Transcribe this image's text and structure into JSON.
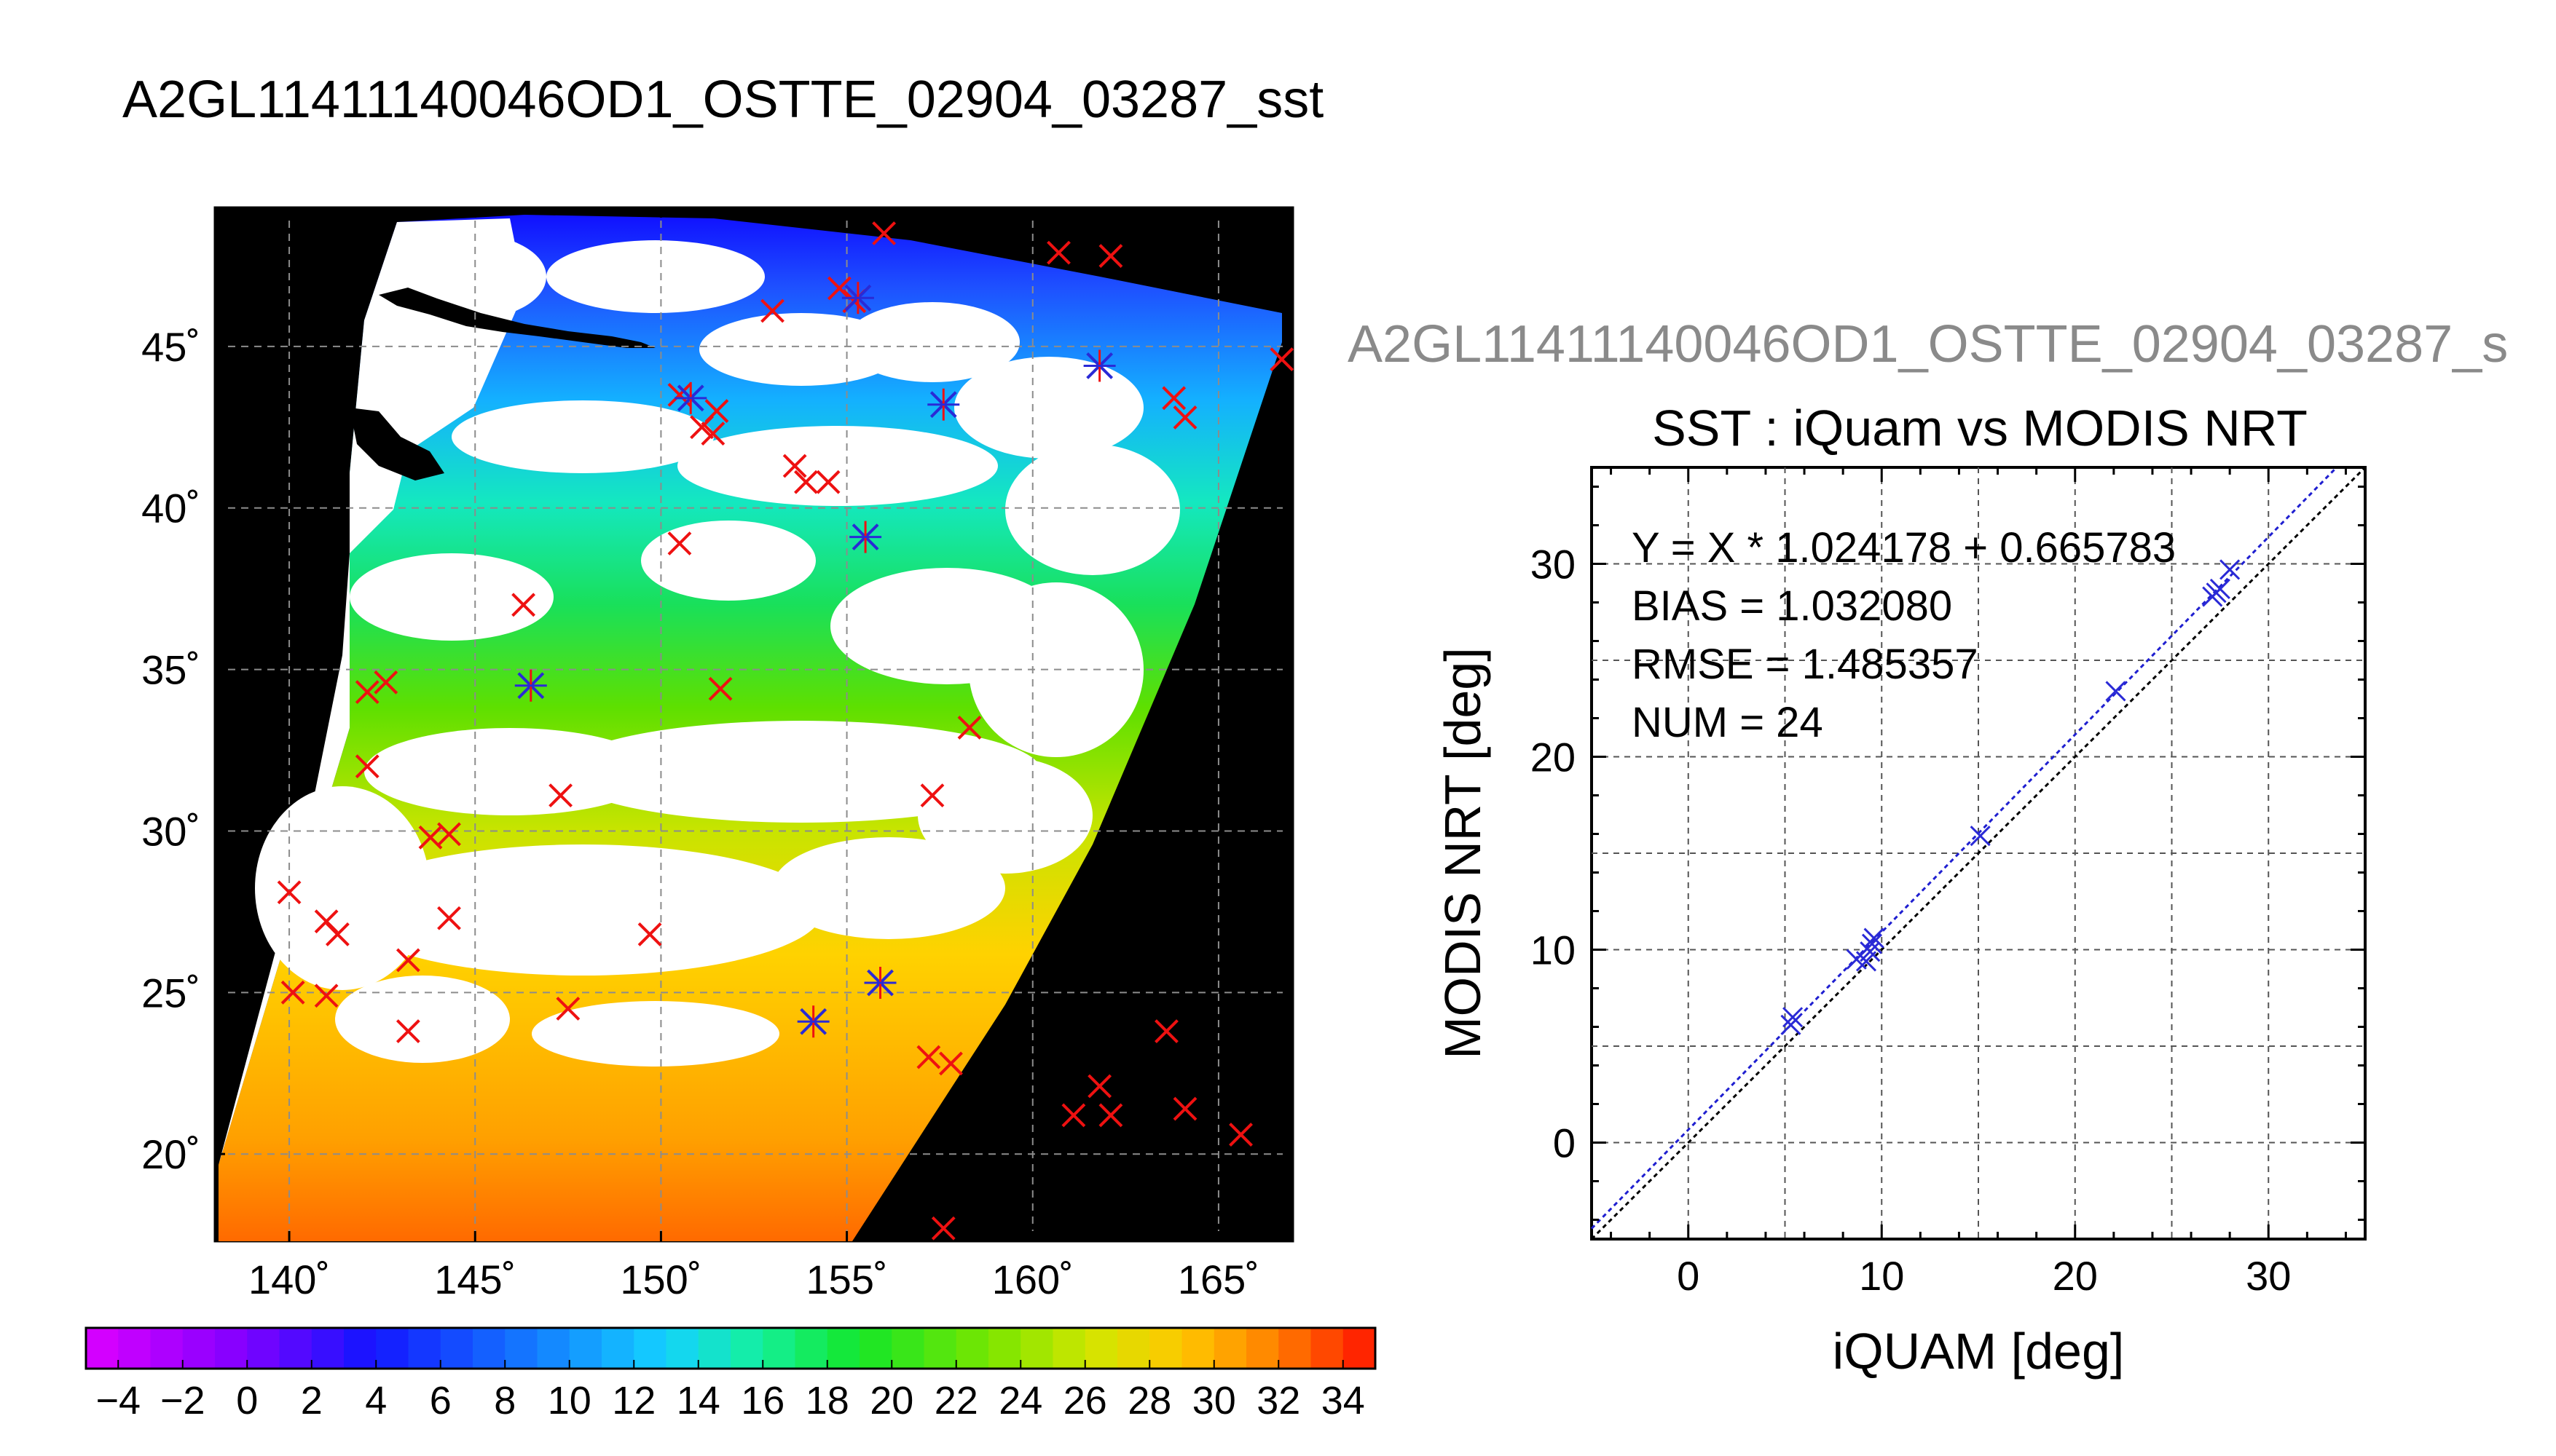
{
  "title": "A2GL11411140046OD1_OSTTE_02904_03287_sst",
  "title_overflow": "A2GL11411140046OD1_OSTTE_02904_03287_s",
  "chart_data": [
    {
      "type": "map",
      "x_ticks": [
        "140˚",
        "145˚",
        "150˚",
        "155˚",
        "160˚",
        "165˚"
      ],
      "x_tick_values": [
        140,
        145,
        150,
        155,
        160,
        165
      ],
      "y_ticks": [
        "20˚",
        "25˚",
        "30˚",
        "35˚",
        "40˚",
        "45˚"
      ],
      "y_tick_values": [
        20,
        25,
        30,
        35,
        40,
        45
      ],
      "xlim": [
        138,
        167
      ],
      "ylim": [
        17.3,
        49.3
      ],
      "grid": true,
      "points": {
        "red": [
          [
            140,
            28.1
          ],
          [
            140.1,
            25
          ],
          [
            141,
            27.2
          ],
          [
            141,
            24.9
          ],
          [
            141.3,
            26.8
          ],
          [
            142.1,
            34.3
          ],
          [
            142.6,
            34.6
          ],
          [
            142.1,
            32
          ],
          [
            143.2,
            26
          ],
          [
            143.2,
            23.8
          ],
          [
            143.8,
            29.8
          ],
          [
            144.3,
            29.9
          ],
          [
            144.3,
            27.3
          ],
          [
            146.3,
            37
          ],
          [
            147.3,
            31.1
          ],
          [
            147.5,
            24.5
          ],
          [
            149.7,
            26.8
          ],
          [
            150.5,
            43.5
          ],
          [
            150.5,
            38.9
          ],
          [
            151.1,
            42.5
          ],
          [
            151.5,
            43
          ],
          [
            151.4,
            42.3
          ],
          [
            151.6,
            34.4
          ],
          [
            153.0,
            46.1
          ],
          [
            153.6,
            41.3
          ],
          [
            153.9,
            40.8
          ],
          [
            154.5,
            40.8
          ],
          [
            154.8,
            46.8
          ],
          [
            155.2,
            46.4
          ],
          [
            156,
            48.5
          ],
          [
            157.2,
            23
          ],
          [
            157.3,
            31.1
          ],
          [
            157.8,
            22.8
          ],
          [
            158.3,
            33.2
          ],
          [
            160.7,
            47.9
          ],
          [
            161.1,
            21.2
          ],
          [
            161.8,
            22.1
          ],
          [
            162.1,
            47.8
          ],
          [
            162.1,
            21.2
          ],
          [
            163.6,
            23.8
          ],
          [
            163.8,
            43.4
          ],
          [
            164.1,
            42.8
          ],
          [
            164.1,
            21.4
          ],
          [
            165.6,
            20.6
          ],
          [
            166.7,
            44.6
          ],
          [
            157.6,
            17.7
          ]
        ],
        "blue": [
          [
            146.5,
            34.5
          ],
          [
            150.8,
            43.4
          ],
          [
            155.3,
            46.5
          ],
          [
            155.5,
            39.1
          ],
          [
            157.6,
            43.2
          ],
          [
            161.8,
            44.4
          ],
          [
            154.1,
            24.1
          ],
          [
            155.9,
            25.3
          ]
        ]
      }
    },
    {
      "type": "colorbar",
      "min": -5,
      "max": 35,
      "tick_labels": [
        "−4",
        "−2",
        "0",
        "2",
        "4",
        "6",
        "8",
        "10",
        "12",
        "14",
        "16",
        "18",
        "20",
        "22",
        "24",
        "26",
        "28",
        "30",
        "32",
        "34"
      ],
      "tick_values": [
        -4,
        -2,
        0,
        2,
        4,
        6,
        8,
        10,
        12,
        14,
        16,
        18,
        20,
        22,
        24,
        26,
        28,
        30,
        32,
        34
      ]
    },
    {
      "type": "scatter",
      "title": "SST : iQuam vs MODIS NRT",
      "xlabel": "iQUAM [deg]",
      "ylabel": "MODIS NRT [deg]",
      "xlim": [
        -5,
        35
      ],
      "ylim": [
        -5,
        35
      ],
      "x_ticks": [
        0,
        10,
        20,
        30
      ],
      "y_ticks": [
        0,
        10,
        20,
        30
      ],
      "grid": true,
      "stats": [
        "Y = X * 1.024178 + 0.665783",
        "BIAS = 1.032080",
        "RMSE = 1.485357",
        "NUM = 24"
      ],
      "fit": {
        "slope": 1.024178,
        "intercept": 0.665783
      },
      "x": [
        5.3,
        5.4,
        8.7,
        9.2,
        9.4,
        9.5,
        9.6,
        15.1,
        22.1,
        27.1,
        27.3,
        27.5,
        28.0
      ],
      "y": [
        6.1,
        6.5,
        9.5,
        9.4,
        9.9,
        10.3,
        10.6,
        15.9,
        23.4,
        28.3,
        28.5,
        28.7,
        29.7
      ]
    }
  ],
  "colors": {
    "map_bg": "#000000",
    "cloud": "#ffffff",
    "red_marker": "#ee1111",
    "blue_marker": "#2a2ad6",
    "fit_line": "#1f1fd0",
    "one_to_one": "#000000"
  }
}
